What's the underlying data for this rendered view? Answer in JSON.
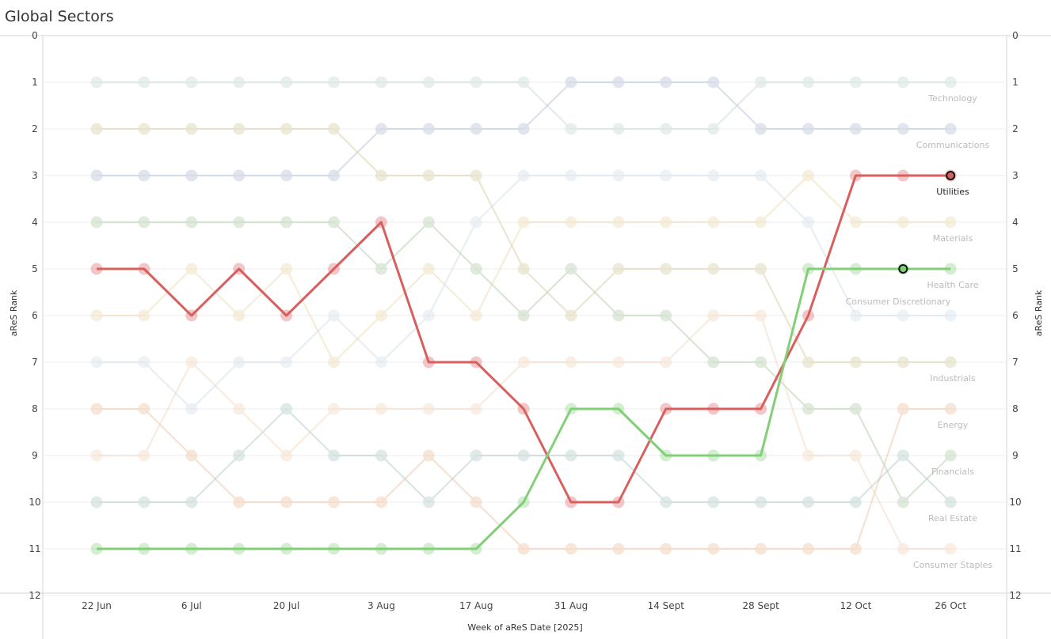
{
  "page": {
    "title": "Global Sectors"
  },
  "chart_data": {
    "type": "line",
    "chart_subtype": "bump",
    "title": "Global Sectors",
    "xlabel": "Week of aReS Date [2025]",
    "ylabel": "aReS Rank",
    "ylim": [
      0,
      12
    ],
    "y_reversed": true,
    "yticks": [
      0,
      1,
      2,
      3,
      4,
      5,
      6,
      7,
      8,
      9,
      10,
      11,
      12
    ],
    "x": [
      "22 Jun",
      "29 Jun",
      "6 Jul",
      "13 Jul",
      "20 Jul",
      "27 Jul",
      "3 Aug",
      "10 Aug",
      "17 Aug",
      "24 Aug",
      "31 Aug",
      "7 Sept",
      "14 Sept",
      "21 Sept",
      "28 Sept",
      "5 Oct",
      "12 Oct",
      "19 Oct",
      "26 Oct"
    ],
    "x_tick_labels": [
      "22 Jun",
      "6 Jul",
      "20 Jul",
      "3 Aug",
      "17 Aug",
      "31 Aug",
      "14 Sept",
      "28 Sept",
      "12 Oct",
      "26 Oct"
    ],
    "grid": true,
    "legend": "end labels at right",
    "highlighted": [
      "Utilities",
      "Health Care"
    ],
    "series": [
      {
        "name": "Technology",
        "color": "#c9dbd7",
        "values": [
          1,
          1,
          1,
          1,
          1,
          1,
          1,
          1,
          1,
          1,
          2,
          2,
          2,
          2,
          1,
          1,
          1,
          1,
          1
        ]
      },
      {
        "name": "Communications",
        "color": "#b8c2d6",
        "values": [
          3,
          3,
          3,
          3,
          3,
          3,
          2,
          2,
          2,
          2,
          1,
          1,
          1,
          1,
          2,
          2,
          2,
          2,
          2
        ]
      },
      {
        "name": "Utilities",
        "color": "#d95f5f",
        "values": [
          5,
          5,
          6,
          5,
          6,
          5,
          4,
          7,
          7,
          8,
          10,
          10,
          8,
          8,
          8,
          6,
          3,
          3,
          3
        ]
      },
      {
        "name": "Materials",
        "color": "#ecdcb3",
        "values": [
          6,
          6,
          5,
          6,
          5,
          7,
          6,
          5,
          6,
          4,
          4,
          4,
          4,
          4,
          4,
          3,
          4,
          4,
          4
        ]
      },
      {
        "name": "Health Care",
        "color": "#82cf77",
        "values": [
          11,
          11,
          11,
          11,
          11,
          11,
          11,
          11,
          11,
          10,
          8,
          8,
          9,
          9,
          9,
          5,
          5,
          5,
          5
        ]
      },
      {
        "name": "Consumer Discretionary",
        "color": "#d2dfe9",
        "values": [
          7,
          7,
          8,
          7,
          7,
          6,
          7,
          6,
          4,
          3,
          3,
          3,
          3,
          3,
          3,
          4,
          6,
          6,
          6
        ]
      },
      {
        "name": "Industrials",
        "color": "#d9cfa9",
        "values": [
          2,
          2,
          2,
          2,
          2,
          2,
          3,
          3,
          3,
          5,
          6,
          5,
          5,
          5,
          5,
          7,
          7,
          7,
          7
        ]
      },
      {
        "name": "Energy",
        "color": "#eec5a6",
        "values": [
          8,
          8,
          9,
          10,
          10,
          10,
          10,
          9,
          10,
          11,
          11,
          11,
          11,
          11,
          11,
          11,
          11,
          8,
          8
        ]
      },
      {
        "name": "Financials",
        "color": "#b5cfb0",
        "values": [
          4,
          4,
          4,
          4,
          4,
          4,
          5,
          4,
          5,
          6,
          5,
          6,
          6,
          7,
          7,
          8,
          8,
          10,
          9
        ]
      },
      {
        "name": "Real Estate",
        "color": "#b4cccb",
        "values": [
          10,
          10,
          10,
          9,
          8,
          9,
          9,
          10,
          9,
          9,
          9,
          9,
          10,
          10,
          10,
          10,
          10,
          9,
          10
        ]
      },
      {
        "name": "Consumer Staples",
        "color": "#f3d8c2",
        "values": [
          9,
          9,
          7,
          8,
          9,
          8,
          8,
          8,
          8,
          7,
          7,
          7,
          7,
          6,
          6,
          9,
          9,
          11,
          11
        ]
      }
    ],
    "end_labels": [
      {
        "series": "Technology",
        "text": "Technology",
        "color": "#bbbbbb"
      },
      {
        "series": "Communications",
        "text": "Communications",
        "color": "#bbbbbb"
      },
      {
        "series": "Utilities",
        "text": "Utilities",
        "color": "#222222"
      },
      {
        "series": "Materials",
        "text": "Materials",
        "color": "#bbbbbb"
      },
      {
        "series": "Health Care",
        "text": "Health Care",
        "color": "#bbbbbb"
      },
      {
        "series": "Consumer Discretionary",
        "text": "Consumer Discretionary",
        "color": "#bbbbbb"
      },
      {
        "series": "Industrials",
        "text": "Industrials",
        "color": "#bbbbbb"
      },
      {
        "series": "Energy",
        "text": "Energy",
        "color": "#bbbbbb"
      },
      {
        "series": "Financials",
        "text": "Financials",
        "color": "#bbbbbb"
      },
      {
        "series": "Real Estate",
        "text": "Real Estate",
        "color": "#bbbbbb"
      },
      {
        "series": "Consumer Staples",
        "text": "Consumer Staples",
        "color": "#bbbbbb"
      }
    ],
    "markers": [
      {
        "series": "Utilities",
        "x": "26 Oct",
        "y": 3
      },
      {
        "series": "Health Care",
        "x": "19 Oct",
        "y": 5
      }
    ]
  }
}
